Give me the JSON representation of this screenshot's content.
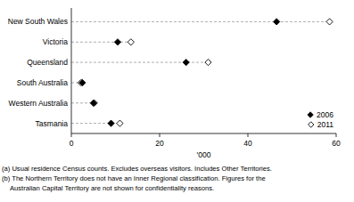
{
  "chart_data": {
    "type": "dot",
    "orientation": "horizontal",
    "categories": [
      "New South Wales",
      "Victoria",
      "Queensland",
      "South Australia",
      "Western Australia",
      "Tasmania"
    ],
    "series": [
      {
        "name": "2006",
        "color": "#000000",
        "marker": "diamond-filled",
        "values": [
          46.5,
          10.5,
          26,
          2.5,
          5,
          9
        ]
      },
      {
        "name": "2011",
        "color": "#000000",
        "marker": "diamond-open",
        "values": [
          58.5,
          13.5,
          31,
          2.2,
          5.2,
          11
        ]
      }
    ],
    "x_label": "'000",
    "xlim": [
      0,
      60
    ],
    "xticks": [
      0,
      20,
      40,
      60
    ],
    "grid": false,
    "legend": "lower right",
    "line_style": "dashed",
    "annotations": [
      "(a) Usual residence Census counts. Excludes overseas visitors. Includes Other Territories.",
      "(b) The Northern Territory does not have an Inner Regional classification. Figures for the",
      "Australian Capital Territory are not shown for confidentiality reasons."
    ]
  }
}
